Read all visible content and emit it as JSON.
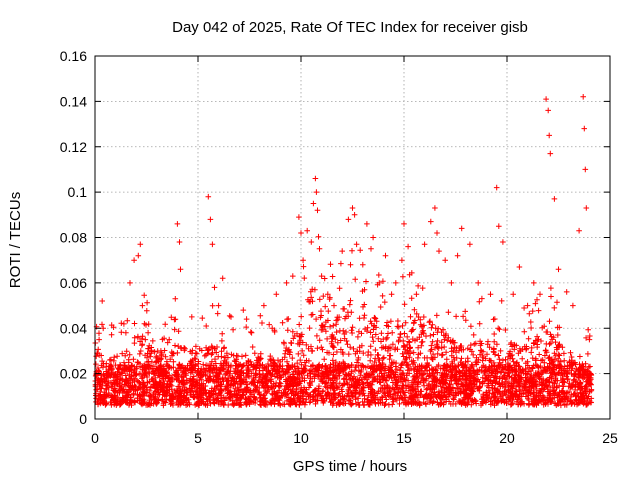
{
  "chart_data": {
    "type": "scatter",
    "title": "Day 042 of 2025, Rate Of TEC Index for receiver gisb",
    "xlabel": "GPS time / hours",
    "ylabel": "ROTI / TECUs",
    "xlim": [
      0,
      25
    ],
    "ylim": [
      0,
      0.16
    ],
    "xticks": [
      0,
      5,
      10,
      15,
      20,
      25
    ],
    "xtick_labels": [
      "0",
      "5",
      "10",
      "15",
      "20",
      "25"
    ],
    "yticks": [
      0,
      0.02,
      0.04,
      0.06,
      0.08,
      0.1,
      0.12,
      0.14,
      0.16
    ],
    "ytick_labels": [
      "0",
      "0.02",
      "0.04",
      "0.06",
      "0.08",
      "0.1",
      "0.12",
      "0.14",
      "0.16"
    ],
    "grid": true,
    "marker": "+",
    "color": "#ff0000",
    "series": [
      {
        "name": "ROTI",
        "x": [
          0.1,
          0.2,
          0.3,
          0.35,
          0.4,
          0.6,
          1.5,
          1.7,
          1.9,
          2.1,
          2.2,
          2.3,
          2.4,
          3.2,
          3.6,
          3.9,
          4.0,
          4.1,
          4.15,
          4.7,
          4.9,
          5.4,
          5.5,
          5.6,
          5.7,
          5.8,
          6.0,
          6.2,
          6.6,
          7.2,
          7.6,
          8.2,
          8.6,
          8.8,
          9.3,
          9.6,
          9.9,
          10.0,
          10.1,
          10.3,
          10.5,
          10.6,
          10.7,
          10.75,
          10.8,
          10.9,
          11.0,
          11.3,
          11.6,
          12.0,
          12.3,
          12.5,
          12.6,
          12.7,
          13.0,
          13.2,
          13.4,
          13.5,
          13.8,
          14.1,
          14.4,
          14.6,
          14.9,
          15.0,
          15.2,
          15.6,
          16.0,
          16.3,
          16.5,
          16.6,
          16.7,
          17.0,
          17.3,
          17.6,
          17.8,
          18.2,
          18.6,
          19.2,
          19.5,
          19.6,
          19.8,
          20.3,
          20.6,
          21.0,
          21.3,
          21.6,
          21.9,
          22.0,
          22.05,
          22.1,
          22.3,
          22.5,
          22.9,
          23.2,
          23.5,
          23.7,
          23.75,
          23.8,
          23.85,
          24.0
        ],
        "y": [
          0.018,
          0.035,
          0.028,
          0.052,
          0.04,
          0.015,
          0.038,
          0.06,
          0.07,
          0.072,
          0.077,
          0.05,
          0.042,
          0.03,
          0.035,
          0.053,
          0.086,
          0.078,
          0.066,
          0.045,
          0.032,
          0.041,
          0.098,
          0.088,
          0.077,
          0.058,
          0.05,
          0.062,
          0.045,
          0.048,
          0.038,
          0.05,
          0.04,
          0.055,
          0.06,
          0.063,
          0.089,
          0.082,
          0.07,
          0.083,
          0.078,
          0.095,
          0.106,
          0.1,
          0.092,
          0.075,
          0.063,
          0.055,
          0.05,
          0.074,
          0.088,
          0.093,
          0.09,
          0.077,
          0.068,
          0.086,
          0.075,
          0.08,
          0.06,
          0.072,
          0.055,
          0.06,
          0.07,
          0.086,
          0.076,
          0.055,
          0.077,
          0.087,
          0.093,
          0.082,
          0.074,
          0.07,
          0.06,
          0.072,
          0.084,
          0.077,
          0.06,
          0.055,
          0.102,
          0.085,
          0.078,
          0.055,
          0.067,
          0.05,
          0.06,
          0.055,
          0.141,
          0.136,
          0.125,
          0.117,
          0.097,
          0.066,
          0.056,
          0.05,
          0.083,
          0.142,
          0.128,
          0.11,
          0.093,
          0.035
        ],
        "note": "Dense background cloud of ~9000 points with ROTI between ~0.005 and ~0.06 TECU/min across 0-24 h, densest 10-13 h."
      }
    ]
  }
}
